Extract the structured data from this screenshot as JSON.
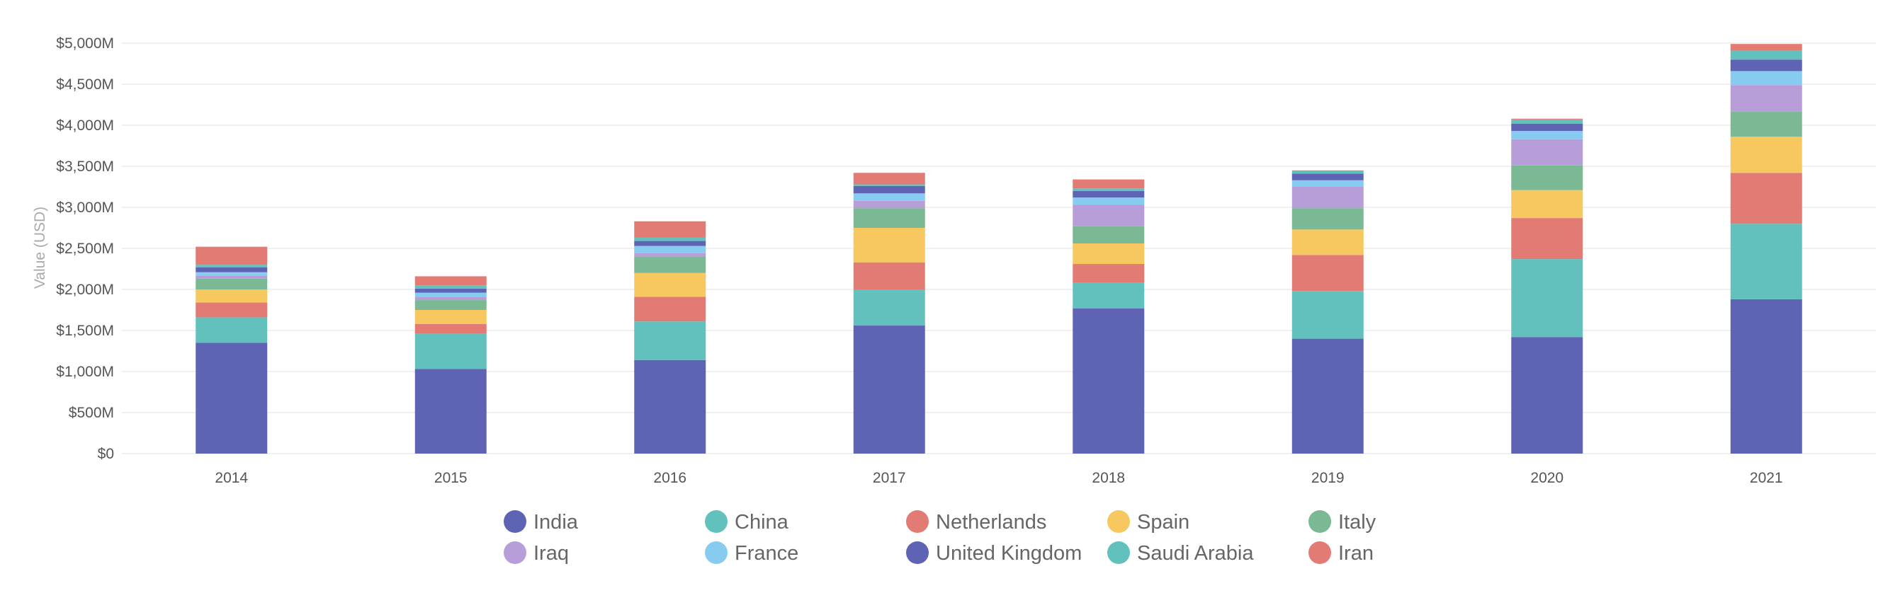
{
  "chart_data": {
    "type": "bar",
    "stacked": true,
    "title": "",
    "xlabel": "",
    "ylabel": "Value (USD)",
    "ylim": [
      0,
      5000
    ],
    "y_unit": "millions USD",
    "yticks": [
      {
        "value": 0,
        "label": "$0"
      },
      {
        "value": 500,
        "label": "$500M"
      },
      {
        "value": 1000,
        "label": "$1,000M"
      },
      {
        "value": 1500,
        "label": "$1,500M"
      },
      {
        "value": 2000,
        "label": "$2,000M"
      },
      {
        "value": 2500,
        "label": "$2,500M"
      },
      {
        "value": 3000,
        "label": "$3,000M"
      },
      {
        "value": 3500,
        "label": "$3,500M"
      },
      {
        "value": 4000,
        "label": "$4,000M"
      },
      {
        "value": 4500,
        "label": "$4,500M"
      },
      {
        "value": 5000,
        "label": "$5,000M"
      }
    ],
    "grid": true,
    "legend_position": "bottom",
    "categories": [
      "2014",
      "2015",
      "2016",
      "2017",
      "2018",
      "2019",
      "2020",
      "2021"
    ],
    "series": [
      {
        "name": "India",
        "color": "#5e63b4",
        "values": [
          1350,
          1030,
          1140,
          1560,
          1770,
          1400,
          1420,
          1880
        ]
      },
      {
        "name": "China",
        "color": "#62c1bd",
        "values": [
          310,
          430,
          470,
          440,
          310,
          580,
          950,
          920
        ]
      },
      {
        "name": "Netherlands",
        "color": "#e27b74",
        "values": [
          180,
          120,
          300,
          330,
          230,
          440,
          500,
          620
        ]
      },
      {
        "name": "Spain",
        "color": "#f6c85f",
        "values": [
          160,
          170,
          290,
          420,
          250,
          310,
          340,
          440
        ]
      },
      {
        "name": "Italy",
        "color": "#7bb894",
        "values": [
          130,
          120,
          200,
          240,
          210,
          260,
          300,
          310
        ]
      },
      {
        "name": "Iraq",
        "color": "#b79ed9",
        "values": [
          40,
          40,
          40,
          90,
          260,
          260,
          320,
          320
        ]
      },
      {
        "name": "France",
        "color": "#87ccf0",
        "values": [
          40,
          50,
          90,
          90,
          90,
          80,
          100,
          170
        ]
      },
      {
        "name": "United Kingdom",
        "color": "#5e63b4",
        "values": [
          60,
          50,
          60,
          90,
          80,
          80,
          90,
          140
        ]
      },
      {
        "name": "Saudi Arabia",
        "color": "#62c1bd",
        "values": [
          30,
          40,
          40,
          20,
          30,
          30,
          50,
          110
        ]
      },
      {
        "name": "Iran",
        "color": "#e27b74",
        "values": [
          220,
          110,
          200,
          140,
          110,
          10,
          10,
          80
        ]
      }
    ]
  }
}
